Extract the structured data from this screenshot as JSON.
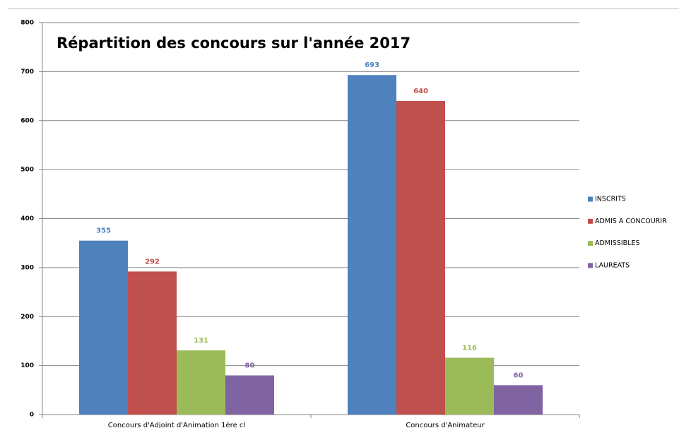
{
  "chart_data": {
    "type": "bar",
    "title": "Répartition des concours sur l'année 2017",
    "categories": [
      "Concours d'Adjoint d'Animation 1ère cl",
      "Concours d'Animateur"
    ],
    "series": [
      {
        "name": "INSCRITS",
        "color": "#4f81bd",
        "values": [
          355,
          693
        ]
      },
      {
        "name": "ADMIS A CONCOURIR",
        "color": "#c0504d",
        "values": [
          292,
          640
        ]
      },
      {
        "name": "ADMISSIBLES",
        "color": "#9bbb59",
        "values": [
          131,
          116
        ]
      },
      {
        "name": "LAUREATS",
        "color": "#8064a2",
        "values": [
          80,
          60
        ]
      }
    ],
    "ylim": [
      0,
      800
    ],
    "yticks": [
      0,
      100,
      200,
      300,
      400,
      500,
      600,
      700,
      800
    ],
    "grid": true,
    "legend": "right"
  }
}
